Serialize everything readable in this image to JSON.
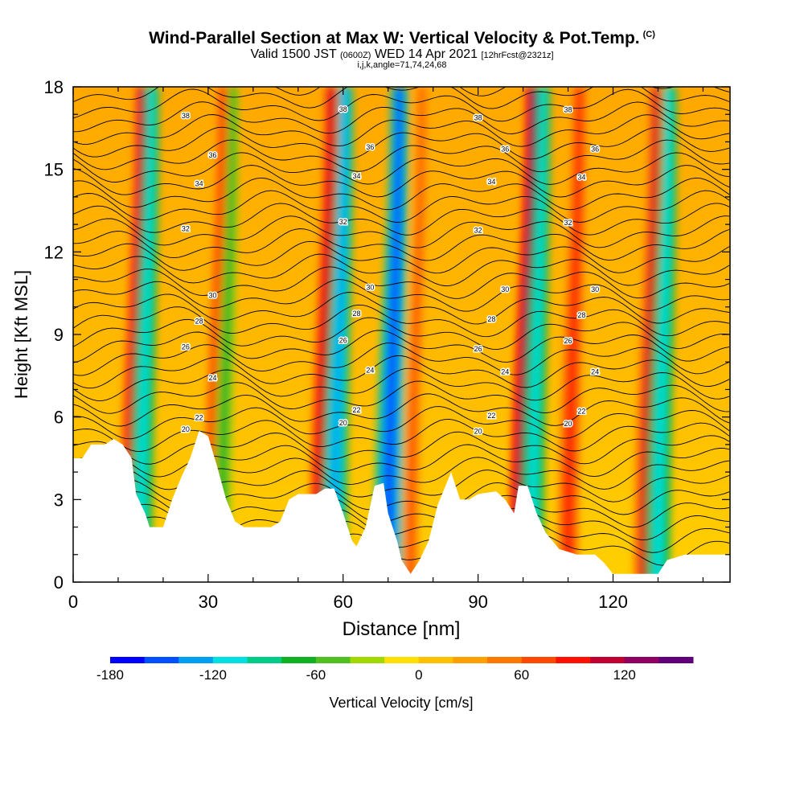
{
  "header": {
    "title_main": "Wind-Parallel Section at Max W: Vertical Velocity & Pot.Temp.",
    "title_unit": "(C)",
    "valid_prefix": "Valid 1500 JST",
    "valid_utc": "(0600Z)",
    "valid_date": "WED 14 Apr 2021",
    "forecast": "[12hrFcst@2321z]",
    "indices": "i,j,k,angle=71,74,24,68"
  },
  "chart_data": {
    "type": "heatmap",
    "xlabel": "Distance [nm]",
    "ylabel": "Height [Kft MSL]",
    "xlim": [
      0,
      146
    ],
    "ylim": [
      0,
      18
    ],
    "xticks": [
      0,
      30,
      60,
      90,
      120
    ],
    "yticks": [
      0,
      3,
      6,
      9,
      12,
      15,
      18
    ],
    "grid": false,
    "colorbar": {
      "label": "Vertical Velocity [cm/s]",
      "ticks": [
        -180,
        -120,
        -60,
        0,
        60,
        120
      ],
      "range": [
        -180,
        160
      ],
      "colors": [
        "#0000ff",
        "#0050ff",
        "#00a0f0",
        "#00e0e0",
        "#00cc88",
        "#10b020",
        "#50c020",
        "#a0d800",
        "#ffe000",
        "#ffc000",
        "#ffa000",
        "#ff7800",
        "#ff4800",
        "#ff1000",
        "#c00030",
        "#900060",
        "#60007a"
      ]
    },
    "updrafts": [
      {
        "x": 13,
        "w": 125
      },
      {
        "x": 31,
        "w": 80
      },
      {
        "x": 55,
        "w": 110
      },
      {
        "x": 75,
        "w": 60
      },
      {
        "x": 100,
        "w": 150
      },
      {
        "x": 110,
        "w": 90
      },
      {
        "x": 127,
        "w": 100
      }
    ],
    "downdrafts": [
      {
        "x": 15,
        "w": -110
      },
      {
        "x": 33,
        "w": -70
      },
      {
        "x": 58,
        "w": -130
      },
      {
        "x": 70,
        "w": -160
      },
      {
        "x": 102,
        "w": -110
      },
      {
        "x": 130,
        "w": -120
      }
    ],
    "theta_contours": [
      {
        "value": 20,
        "height": 5.5
      },
      {
        "value": 22,
        "height": 6.0
      },
      {
        "value": 24,
        "height": 7.5
      },
      {
        "value": 26,
        "height": 8.5
      },
      {
        "value": 28,
        "height": 9.5
      },
      {
        "value": 30,
        "height": 10.5
      },
      {
        "value": 32,
        "height": 12.8
      },
      {
        "value": 34,
        "height": 14.5
      },
      {
        "value": 36,
        "height": 15.6
      },
      {
        "value": 38,
        "height": 16.9
      }
    ],
    "terrain": [
      [
        0,
        4.5
      ],
      [
        2,
        4.5
      ],
      [
        4,
        5.0
      ],
      [
        7,
        5.0
      ],
      [
        9,
        5.2
      ],
      [
        11,
        5.0
      ],
      [
        13,
        4.5
      ],
      [
        14,
        3.2
      ],
      [
        16,
        2.5
      ],
      [
        17,
        2.0
      ],
      [
        20,
        2.0
      ],
      [
        22,
        3.0
      ],
      [
        24,
        3.8
      ],
      [
        26,
        4.5
      ],
      [
        28,
        5.5
      ],
      [
        30,
        5.3
      ],
      [
        32,
        4.2
      ],
      [
        34,
        3.0
      ],
      [
        36,
        2.2
      ],
      [
        38,
        2.0
      ],
      [
        44,
        2.0
      ],
      [
        46,
        2.2
      ],
      [
        48,
        3.0
      ],
      [
        50,
        3.2
      ],
      [
        54,
        3.2
      ],
      [
        56,
        3.4
      ],
      [
        58,
        3.4
      ],
      [
        60,
        2.5
      ],
      [
        62,
        1.5
      ],
      [
        63,
        1.3
      ],
      [
        65,
        2.0
      ],
      [
        67,
        3.5
      ],
      [
        69,
        3.6
      ],
      [
        70,
        2.5
      ],
      [
        72,
        1.5
      ],
      [
        73,
        0.8
      ],
      [
        75,
        0.3
      ],
      [
        77,
        0.8
      ],
      [
        79,
        1.5
      ],
      [
        81,
        2.8
      ],
      [
        84,
        4.0
      ],
      [
        86,
        3.0
      ],
      [
        88,
        3.0
      ],
      [
        90,
        3.2
      ],
      [
        94,
        3.3
      ],
      [
        96,
        3.0
      ],
      [
        98,
        2.5
      ],
      [
        99,
        3.5
      ],
      [
        101,
        3.5
      ],
      [
        103,
        2.5
      ],
      [
        105,
        1.8
      ],
      [
        108,
        1.2
      ],
      [
        112,
        1.0
      ],
      [
        116,
        1.0
      ],
      [
        118,
        0.7
      ],
      [
        120,
        0.3
      ],
      [
        124,
        0.3
      ],
      [
        130,
        0.3
      ],
      [
        132,
        0.8
      ],
      [
        136,
        1.0
      ],
      [
        146,
        1.0
      ]
    ]
  }
}
